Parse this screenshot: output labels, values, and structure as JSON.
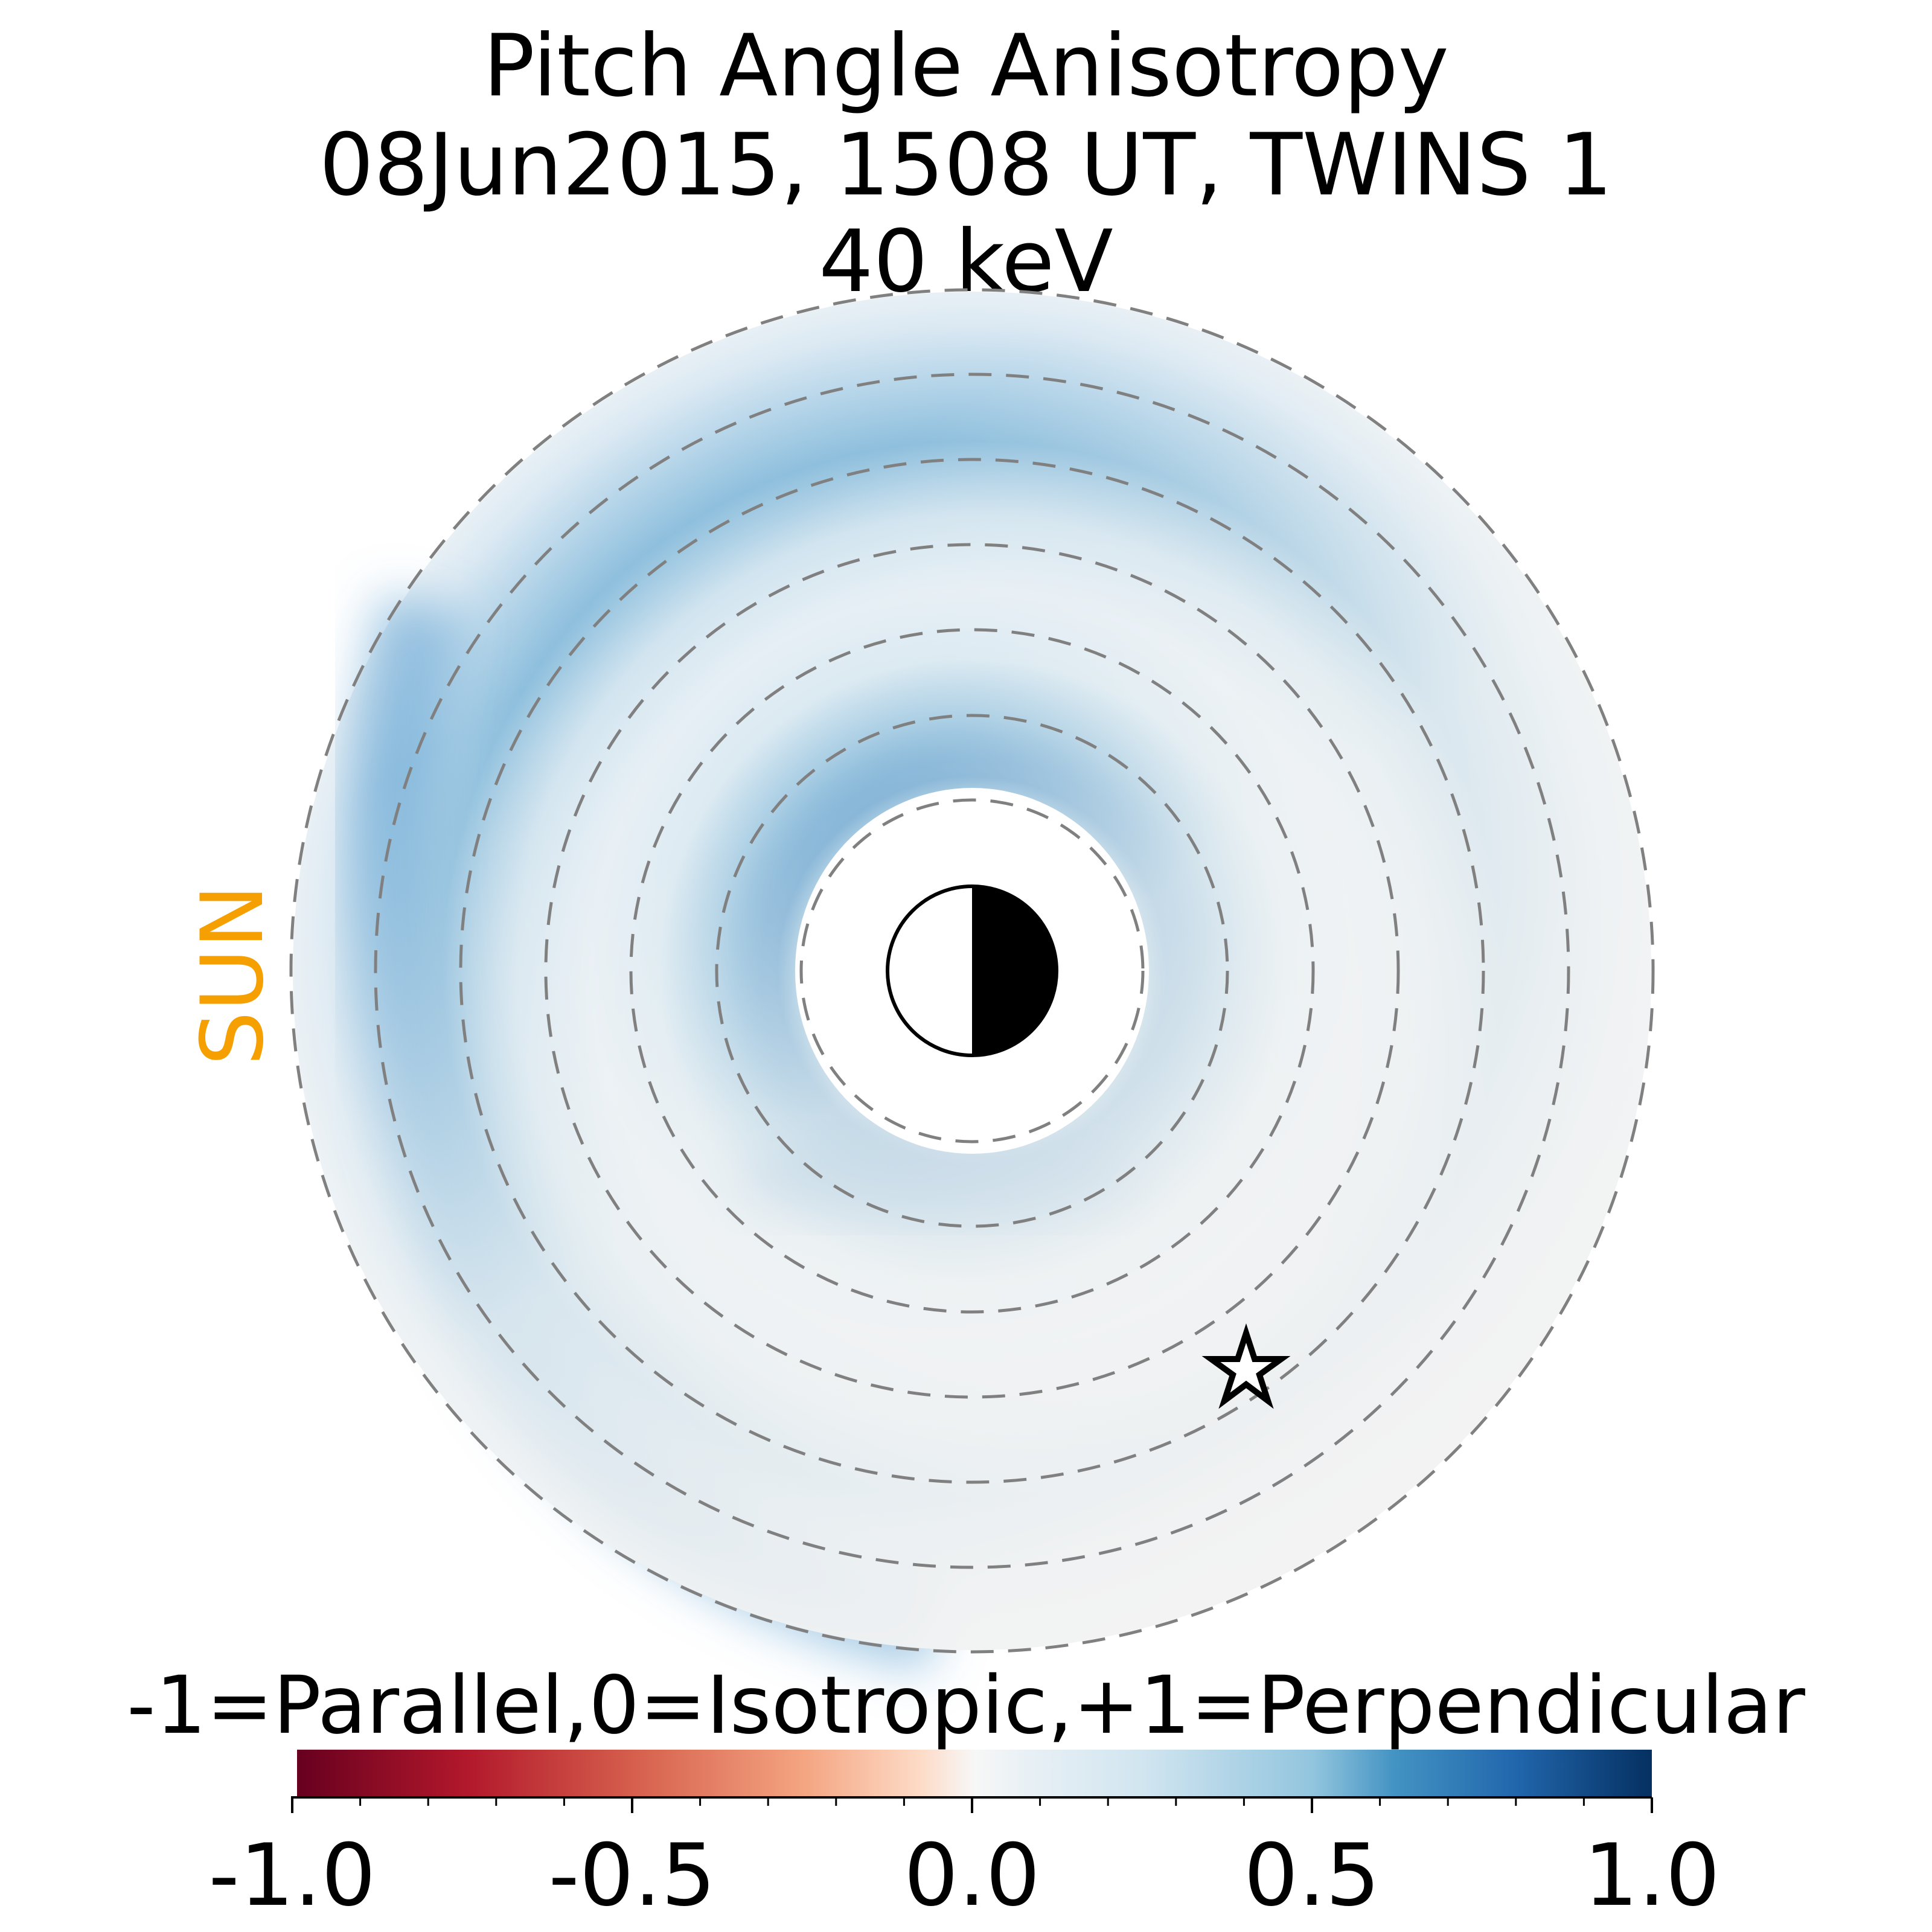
{
  "chart_data": {
    "type": "heatmap",
    "projection": "polar equatorial map, Sun to the left",
    "title_lines": [
      "Pitch Angle Anisotropy",
      "08Jun2015, 1508 UT,  TWINS 1",
      "40 keV"
    ],
    "sun_label": "SUN",
    "grid": "dashed concentric rings",
    "markers": [
      "earth-day-night-symbol",
      "spacecraft-star"
    ],
    "field_description": "positive anisotropy band (up to about +0.55) encircling the inner boundary, strongest on the dusk/night side; weaker second band on the dayside outer region; near zero on the right side",
    "colorbar": {
      "title": "-1=Parallel,0=Isotropic,+1=Perpendicular",
      "colormap": "RdBu",
      "range": [
        -1.0,
        1.0
      ],
      "ticks": [
        "-1.0",
        "-0.5",
        "0.0",
        "0.5",
        "1.0"
      ],
      "stops": [
        {
          "value": -1.0,
          "color": "#67001f"
        },
        {
          "value": -0.75,
          "color": "#b2182b"
        },
        {
          "value": -0.5,
          "color": "#d6604d"
        },
        {
          "value": -0.25,
          "color": "#f4a582"
        },
        {
          "value": -0.08,
          "color": "#fddbc7"
        },
        {
          "value": 0.0,
          "color": "#f7f7f7"
        },
        {
          "value": 0.08,
          "color": "#e8f0f5"
        },
        {
          "value": 0.25,
          "color": "#d1e5f0"
        },
        {
          "value": 0.5,
          "color": "#92c5de"
        },
        {
          "value": 0.62,
          "color": "#4393c3"
        },
        {
          "value": 0.8,
          "color": "#2166ac"
        },
        {
          "value": 1.0,
          "color": "#053061"
        }
      ]
    }
  },
  "colors": {
    "sun": "#f5a000",
    "grid": "#808080",
    "axis": "#000000"
  }
}
